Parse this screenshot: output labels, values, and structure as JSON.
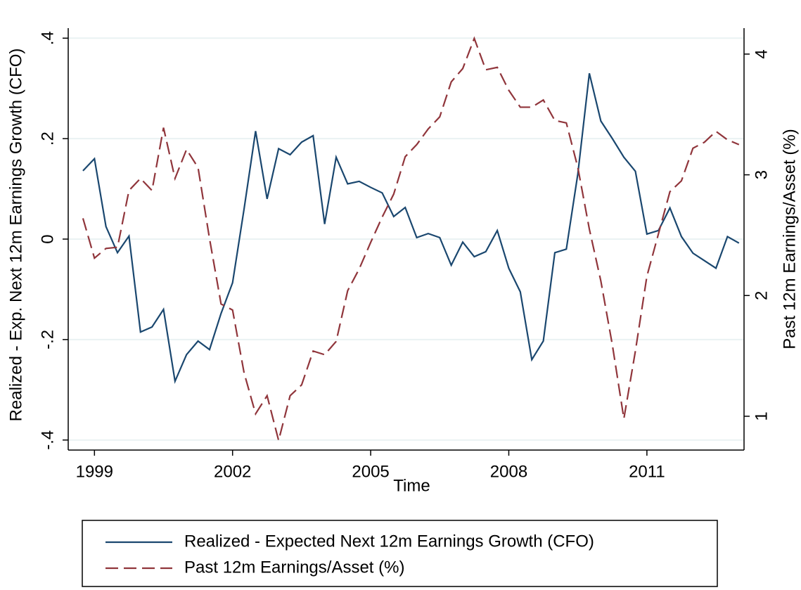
{
  "chart_data": {
    "type": "line",
    "x": [
      1998.75,
      1999,
      1999.25,
      1999.5,
      1999.75,
      2000,
      2000.25,
      2000.5,
      2000.75,
      2001,
      2001.25,
      2001.5,
      2001.75,
      2002,
      2002.25,
      2002.5,
      2002.75,
      2003,
      2003.25,
      2003.5,
      2003.75,
      2004,
      2004.25,
      2004.5,
      2004.75,
      2005,
      2005.25,
      2005.5,
      2005.75,
      2006,
      2006.25,
      2006.5,
      2006.75,
      2007,
      2007.25,
      2007.5,
      2007.75,
      2008,
      2008.25,
      2008.5,
      2008.75,
      2009,
      2009.25,
      2009.5,
      2009.75,
      2010,
      2010.25,
      2010.5,
      2010.75,
      2011,
      2011.25,
      2011.5,
      2011.75,
      2012,
      2012.25,
      2012.5,
      2012.75,
      2013
    ],
    "series": [
      {
        "name": "Realized - Expected Next 12m Earnings Growth (CFO)",
        "color": "#1a476f",
        "dash": "solid",
        "values": [
          0.136,
          0.16,
          0.025,
          -0.027,
          0.006,
          -0.185,
          -0.175,
          -0.14,
          -0.283,
          -0.23,
          -0.203,
          -0.22,
          -0.148,
          -0.087,
          0.06,
          0.215,
          0.08,
          0.18,
          0.168,
          0.193,
          0.206,
          0.03,
          0.163,
          0.11,
          0.115,
          0.103,
          0.092,
          0.045,
          0.063,
          0.003,
          0.011,
          0.003,
          -0.052,
          -0.006,
          -0.035,
          -0.025,
          0.017,
          -0.058,
          -0.105,
          -0.24,
          -0.203,
          -0.027,
          -0.02,
          0.13,
          0.33,
          0.235,
          0.2,
          0.163,
          0.135,
          0.01,
          0.017,
          0.062,
          0.005,
          -0.028,
          -0.043,
          -0.058,
          0.005,
          -0.008
        ]
      },
      {
        "name": "Past 12m Earnings/Asset (%)",
        "color": "#90353b",
        "dash": "dashed",
        "axis": "y2",
        "values": [
          2.64,
          2.31,
          2.39,
          2.4,
          2.87,
          2.97,
          2.87,
          3.39,
          2.97,
          3.21,
          3.06,
          2.47,
          1.93,
          1.88,
          1.36,
          1.02,
          1.17,
          0.8,
          1.17,
          1.26,
          1.54,
          1.51,
          1.62,
          2.04,
          2.22,
          2.44,
          2.65,
          2.84,
          3.15,
          3.25,
          3.38,
          3.48,
          3.77,
          3.88,
          4.13,
          3.87,
          3.89,
          3.7,
          3.56,
          3.56,
          3.62,
          3.45,
          3.43,
          3.06,
          2.55,
          2.12,
          1.59,
          0.98,
          1.54,
          2.16,
          2.51,
          2.86,
          2.95,
          3.22,
          3.27,
          3.36,
          3.29,
          3.25
        ]
      }
    ],
    "xlabel": "Time",
    "ylabel": "Realized - Exp. Next 12m Earnings Growth (CFO)",
    "y2label": "Past 12m Earnings/Asset (%)",
    "xlim": [
      1998.43,
      2013.11
    ],
    "xticks": [
      1999,
      2002,
      2005,
      2008,
      2011
    ],
    "ylim": [
      -0.42,
      0.42
    ],
    "yticks": [
      {
        "value": -0.4,
        "label": "-.4"
      },
      {
        "value": -0.2,
        "label": "-.2"
      },
      0,
      {
        "value": 0.2,
        "label": ".2"
      },
      {
        "value": 0.4,
        "label": ".4"
      }
    ],
    "y2lim": [
      0.72,
      4.215
    ],
    "y2ticks": [
      1,
      2,
      3,
      4
    ],
    "grid": true
  }
}
